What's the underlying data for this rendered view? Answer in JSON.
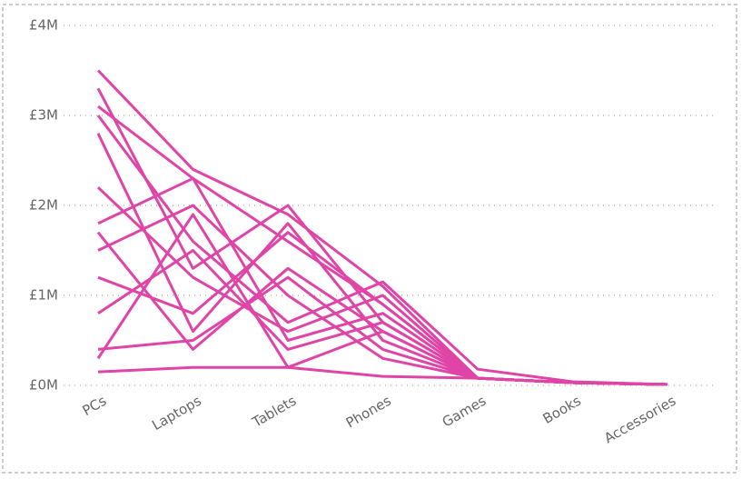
{
  "chart_data": {
    "type": "line",
    "categories": [
      "PCs",
      "Laptops",
      "Tablets",
      "Phones",
      "Games",
      "Books",
      "Accessories"
    ],
    "series": [
      {
        "color": "#e044a7",
        "values": [
          3.5,
          2.4,
          1.9,
          1.1,
          0.08,
          0.03,
          0.01
        ]
      },
      {
        "color": "#e044a7",
        "values": [
          3.3,
          1.3,
          2.0,
          0.7,
          0.08,
          0.03,
          0.01
        ]
      },
      {
        "color": "#e044a7",
        "values": [
          3.1,
          2.3,
          1.6,
          0.9,
          0.08,
          0.03,
          0.01
        ]
      },
      {
        "color": "#e044a7",
        "values": [
          2.8,
          0.6,
          1.8,
          0.5,
          0.08,
          0.03,
          0.01
        ]
      },
      {
        "color": "#e044a7",
        "values": [
          2.2,
          1.2,
          0.6,
          1.0,
          0.08,
          0.03,
          0.01
        ]
      },
      {
        "color": "#e044a7",
        "values": [
          1.8,
          2.3,
          0.5,
          0.8,
          0.08,
          0.03,
          0.01
        ]
      },
      {
        "color": "#e044a7",
        "values": [
          1.7,
          0.4,
          1.3,
          0.6,
          0.08,
          0.03,
          0.01
        ]
      },
      {
        "color": "#e044a7",
        "values": [
          1.5,
          2.0,
          1.0,
          0.3,
          0.08,
          0.03,
          0.01
        ]
      },
      {
        "color": "#e044a7",
        "values": [
          1.2,
          0.8,
          1.7,
          0.9,
          0.08,
          0.03,
          0.01
        ]
      },
      {
        "color": "#e044a7",
        "values": [
          0.8,
          1.5,
          0.4,
          0.7,
          0.08,
          0.03,
          0.01
        ]
      },
      {
        "color": "#e044a7",
        "values": [
          0.4,
          0.5,
          1.2,
          0.4,
          0.08,
          0.03,
          0.01
        ]
      },
      {
        "color": "#e044a7",
        "values": [
          0.3,
          1.9,
          0.2,
          0.6,
          0.08,
          0.03,
          0.01
        ]
      },
      {
        "color": "#e044a7",
        "values": [
          0.15,
          0.2,
          0.2,
          0.1,
          0.08,
          0.03,
          0.01
        ]
      },
      {
        "color": "#e044a7",
        "values": [
          3.0,
          1.6,
          0.7,
          1.15,
          0.18,
          0.04,
          0.01
        ]
      }
    ],
    "ylim": [
      0,
      4
    ],
    "yticks": [
      {
        "value": 0,
        "label": "£0M"
      },
      {
        "value": 1,
        "label": "£1M"
      },
      {
        "value": 2,
        "label": "£2M"
      },
      {
        "value": 3,
        "label": "£3M"
      },
      {
        "value": 4,
        "label": "£4M"
      }
    ],
    "grid": true
  }
}
